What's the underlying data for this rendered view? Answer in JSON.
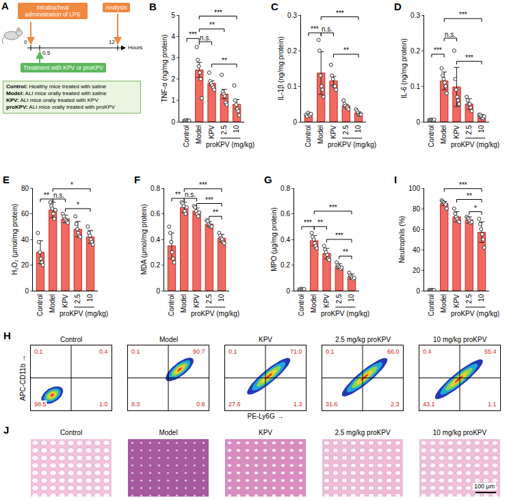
{
  "diagram": {
    "panel": "A",
    "boxes": {
      "lps": "Intratracheal administration of LPS",
      "analysis": "Analysis",
      "treatment": "Treatment with KPV or proKPV"
    },
    "axis": {
      "label": "Hours",
      "ticks": [
        "0",
        "0.5",
        "12"
      ]
    },
    "legend": [
      {
        "term": "Control:",
        "text": "Healthy mice treated with saline"
      },
      {
        "term": "Model:",
        "text": "ALI mice orally treated with saline"
      },
      {
        "term": "KPV:",
        "text": "ALI mice orally treated with KPV"
      },
      {
        "term": "proKPV:",
        "text": "ALI mice orally treated with proKPV"
      }
    ]
  },
  "chart_data": [
    {
      "type": "bar",
      "panel": "B",
      "ylabel": "TNF-α (ng/mg protein)",
      "categories": [
        "Control",
        "Model",
        "KPV",
        "2.5",
        "10"
      ],
      "values": [
        0.05,
        2.43,
        1.8,
        1.3,
        0.82
      ],
      "error": [
        0.02,
        0.35,
        0.12,
        0.22,
        0.22
      ],
      "points": [
        [
          0.05,
          0.03,
          0.08,
          0.04,
          0.06,
          0.05
        ],
        [
          3.5,
          2.9,
          2.6,
          2.3,
          2.0,
          1.1
        ],
        [
          2.3,
          1.9,
          1.8,
          1.7,
          1.6,
          1.5
        ],
        [
          2.2,
          1.4,
          1.3,
          1.2,
          0.9,
          0.8
        ],
        [
          1.7,
          1.0,
          0.8,
          0.6,
          0.5,
          0.3
        ]
      ],
      "ylim": [
        0,
        5
      ],
      "yticks": [
        0,
        1,
        2,
        3,
        4,
        5
      ],
      "color": "#ef6a60",
      "brackets": [
        {
          "from": "Control",
          "to": "Model",
          "label": "***",
          "y": 3.9
        },
        {
          "from": "Model",
          "to": "KPV",
          "label": "n.s.",
          "y": 3.75
        },
        {
          "from": "Model",
          "to": "2.5",
          "label": "**",
          "y": 4.35
        },
        {
          "from": "Model",
          "to": "10",
          "label": "***",
          "y": 4.95
        },
        {
          "from": "KPV",
          "to": "10",
          "label": "**",
          "y": 2.7
        }
      ],
      "group": {
        "label": "proKPV (mg/kg)",
        "from": "2.5",
        "to": "10"
      }
    },
    {
      "type": "bar",
      "panel": "C",
      "ylabel": "IL-1β (ng/mg protein)",
      "categories": [
        "Control",
        "Model",
        "KPV",
        "2.5",
        "10"
      ],
      "values": [
        0.02,
        0.137,
        0.115,
        0.045,
        0.025
      ],
      "error": [
        0.003,
        0.06,
        0.012,
        0.004,
        0.003
      ],
      "points": [
        [
          0.02,
          0.015,
          0.025,
          0.02,
          0.018,
          0.022
        ],
        [
          0.23,
          0.2,
          0.13,
          0.1,
          0.09,
          0.07
        ],
        [
          0.16,
          0.13,
          0.12,
          0.1,
          0.1,
          0.09
        ],
        [
          0.06,
          0.05,
          0.045,
          0.04,
          0.04,
          0.035
        ],
        [
          0.035,
          0.03,
          0.025,
          0.02,
          0.02,
          0.02
        ]
      ],
      "ylim": [
        0,
        0.3
      ],
      "yticks": [
        0,
        0.1,
        0.2,
        0.3
      ],
      "color": "#ef6a60",
      "brackets": [
        {
          "from": "Control",
          "to": "Model",
          "label": "***",
          "y": 0.25
        },
        {
          "from": "Model",
          "to": "KPV",
          "label": "n.s.",
          "y": 0.25
        },
        {
          "from": "Model",
          "to": "10",
          "label": "***",
          "y": 0.295
        },
        {
          "from": "KPV",
          "to": "10",
          "label": "**",
          "y": 0.19
        }
      ],
      "group": {
        "label": "proKPV (mg/kg)",
        "from": "2.5",
        "to": "10"
      }
    },
    {
      "type": "bar",
      "panel": "D",
      "ylabel": "IL-6 (ng/mg protein)",
      "categories": [
        "Control",
        "Model",
        "KPV",
        "2.5",
        "10"
      ],
      "values": [
        0.005,
        0.115,
        0.098,
        0.05,
        0.015
      ],
      "error": [
        0.002,
        0.025,
        0.055,
        0.015,
        0.005
      ],
      "points": [
        [
          0.005,
          0.004,
          0.006,
          0.005,
          0.004,
          0.006
        ],
        [
          0.15,
          0.13,
          0.12,
          0.11,
          0.1,
          0.08
        ],
        [
          0.2,
          0.12,
          0.09,
          0.07,
          0.06,
          0.05
        ],
        [
          0.07,
          0.06,
          0.05,
          0.05,
          0.04,
          0.03
        ],
        [
          0.02,
          0.02,
          0.015,
          0.01,
          0.01,
          0.015
        ]
      ],
      "ylim": [
        0,
        0.3
      ],
      "yticks": [
        0,
        0.1,
        0.2,
        0.3
      ],
      "color": "#ef6a60",
      "brackets": [
        {
          "from": "Control",
          "to": "Model",
          "label": "***",
          "y": 0.19
        },
        {
          "from": "Model",
          "to": "KPV",
          "label": "n.s.",
          "y": 0.235
        },
        {
          "from": "Model",
          "to": "10",
          "label": "***",
          "y": 0.29
        },
        {
          "from": "KPV",
          "to": "10",
          "label": "***",
          "y": 0.17
        }
      ],
      "group": {
        "label": "proKPV (mg/kg)",
        "from": "2.5",
        "to": "10"
      }
    },
    {
      "type": "bar",
      "panel": "E",
      "ylabel": "H₂O₂ (μmol/mg protein)",
      "categories": [
        "Control",
        "Model",
        "KPV",
        "2.5",
        "10"
      ],
      "values": [
        30,
        63,
        56,
        48,
        42
      ],
      "error": [
        9,
        6,
        3,
        6,
        5
      ],
      "points": [
        [
          45,
          38,
          30,
          25,
          22,
          20
        ],
        [
          69,
          66,
          64,
          60,
          56,
          63
        ],
        [
          60,
          58,
          56,
          55,
          54,
          53
        ],
        [
          58,
          52,
          48,
          45,
          43,
          42
        ],
        [
          50,
          45,
          43,
          40,
          38,
          36
        ]
      ],
      "ylim": [
        0,
        80
      ],
      "yticks": [
        0,
        20,
        40,
        60,
        80
      ],
      "color": "#ef6a60",
      "brackets": [
        {
          "from": "Control",
          "to": "Model",
          "label": "**",
          "y": 71.5
        },
        {
          "from": "Model",
          "to": "KPV",
          "label": "n.s.",
          "y": 71.5
        },
        {
          "from": "Model",
          "to": "10",
          "label": "*",
          "y": 79.5
        },
        {
          "from": "KPV",
          "to": "10",
          "label": "*",
          "y": 64
        }
      ],
      "group": {
        "label": "proKPV (mg/kg)",
        "from": "2.5",
        "to": "10"
      }
    },
    {
      "type": "bar",
      "panel": "F",
      "ylabel": "MDA (μmol/mg protein)",
      "categories": [
        "Control",
        "Model",
        "KPV",
        "2.5",
        "10"
      ],
      "values": [
        0.35,
        0.65,
        0.62,
        0.52,
        0.41
      ],
      "error": [
        0.1,
        0.04,
        0.025,
        0.02,
        0.03
      ],
      "points": [
        [
          0.5,
          0.45,
          0.38,
          0.3,
          0.25,
          0.22
        ],
        [
          0.69,
          0.68,
          0.66,
          0.62,
          0.6,
          0.65
        ],
        [
          0.66,
          0.65,
          0.62,
          0.6,
          0.58,
          0.61
        ],
        [
          0.55,
          0.54,
          0.52,
          0.51,
          0.5,
          0.5
        ],
        [
          0.45,
          0.43,
          0.41,
          0.4,
          0.38,
          0.37
        ]
      ],
      "ylim": [
        0,
        0.8
      ],
      "yticks": [
        0,
        0.2,
        0.4,
        0.6,
        0.8
      ],
      "color": "#ef6a60",
      "brackets": [
        {
          "from": "Control",
          "to": "Model",
          "label": "**",
          "y": 0.72
        },
        {
          "from": "Model",
          "to": "KPV",
          "label": "n.s.",
          "y": 0.72
        },
        {
          "from": "Model",
          "to": "10",
          "label": "***",
          "y": 0.795
        },
        {
          "from": "KPV",
          "to": "10",
          "label": "***",
          "y": 0.68
        },
        {
          "from": "2.5",
          "to": "10",
          "label": "**",
          "y": 0.58
        }
      ],
      "group": {
        "label": "proKPV (mg/kg)",
        "from": "2.5",
        "to": "10"
      }
    },
    {
      "type": "bar",
      "panel": "G",
      "ylabel": "MPO (μg/mg protein)",
      "categories": [
        "Control",
        "Model",
        "KPV",
        "2.5",
        "10"
      ],
      "values": [
        0.01,
        0.39,
        0.29,
        0.19,
        0.11
      ],
      "error": [
        0.005,
        0.04,
        0.04,
        0.02,
        0.02
      ],
      "points": [
        [
          0.01,
          0.005,
          0.015,
          0.01,
          0.008,
          0.012
        ],
        [
          0.45,
          0.42,
          0.4,
          0.37,
          0.35,
          0.33
        ],
        [
          0.35,
          0.32,
          0.3,
          0.28,
          0.25,
          0.24
        ],
        [
          0.22,
          0.2,
          0.19,
          0.18,
          0.17,
          0.18
        ],
        [
          0.14,
          0.12,
          0.11,
          0.1,
          0.09,
          0.1
        ]
      ],
      "ylim": [
        0,
        0.8
      ],
      "yticks": [
        0,
        0.2,
        0.4,
        0.6,
        0.8
      ],
      "color": "#ef6a60",
      "brackets": [
        {
          "from": "Control",
          "to": "Model",
          "label": "***",
          "y": 0.5
        },
        {
          "from": "Model",
          "to": "KPV",
          "label": "**",
          "y": 0.5
        },
        {
          "from": "Model",
          "to": "10",
          "label": "***",
          "y": 0.62
        },
        {
          "from": "KPV",
          "to": "10",
          "label": "***",
          "y": 0.4
        },
        {
          "from": "2.5",
          "to": "10",
          "label": "**",
          "y": 0.27
        }
      ],
      "group": {
        "label": "proKPV (mg/kg)",
        "from": "2.5",
        "to": "10"
      }
    },
    {
      "type": "bar",
      "panel": "I",
      "ylabel": "Neutrophils (%)",
      "categories": [
        "Control",
        "Model",
        "KPV",
        "2.5",
        "10"
      ],
      "values": [
        0.5,
        85,
        72,
        69,
        57
      ],
      "error": [
        0.3,
        2,
        5,
        3,
        10
      ],
      "points": [
        [
          0.5,
          0.3,
          0.7,
          0.4,
          0.6,
          0.5
        ],
        [
          88,
          87,
          86,
          85,
          84,
          80
        ],
        [
          80,
          75,
          72,
          70,
          68,
          67
        ],
        [
          72,
          71,
          70,
          68,
          66,
          67
        ],
        [
          70,
          65,
          60,
          55,
          50,
          42
        ]
      ],
      "ylim": [
        0,
        100
      ],
      "yticks": [
        0,
        20,
        40,
        60,
        80,
        100
      ],
      "color": "#ef6a60",
      "brackets": [
        {
          "from": "Model",
          "to": "10",
          "label": "***",
          "y": 99.5
        },
        {
          "from": "KPV",
          "to": "10",
          "label": "**",
          "y": 89
        },
        {
          "from": "2.5",
          "to": "10",
          "label": "*",
          "y": 77
        }
      ],
      "group": {
        "label": "proKPV (mg/kg)",
        "from": "2.5",
        "to": "10"
      }
    },
    {
      "type": "scatter",
      "panel": "H",
      "title": "Control",
      "ylabel": "APC-CD11b →",
      "xlim": [
        0,
        100
      ],
      "ylim": [
        0,
        100
      ],
      "tick_labels": false,
      "gate": {
        "x": 50,
        "y": 50
      },
      "population": {
        "from": [
          15,
          12
        ],
        "to": [
          38,
          35
        ],
        "width": 20
      },
      "quadrants": {
        "upper_left": "0.1",
        "upper_right": "0.4",
        "lower_left": "98.5",
        "lower_right": "1.0"
      }
    },
    {
      "type": "scatter",
      "title": "Model",
      "xlim": [
        0,
        100
      ],
      "ylim": [
        0,
        100
      ],
      "tick_labels": false,
      "gate": {
        "x": 50,
        "y": 50
      },
      "population": {
        "from": [
          48,
          46
        ],
        "to": [
          80,
          80
        ],
        "width": 18
      },
      "quadrants": {
        "upper_left": "0.1",
        "upper_right": "90.7",
        "lower_left": "8.3",
        "lower_right": "0.9"
      }
    },
    {
      "type": "scatter",
      "title": "KPV",
      "xlabel": "PE-Ly6G →",
      "xlim": [
        0,
        100
      ],
      "ylim": [
        0,
        100
      ],
      "tick_labels": false,
      "gate": {
        "x": 50,
        "y": 50
      },
      "population": {
        "from": [
          28,
          25
        ],
        "to": [
          80,
          80
        ],
        "width": 18
      },
      "quadrants": {
        "upper_left": "0.1",
        "upper_right": "71.0",
        "lower_left": "27.6",
        "lower_right": "1.3"
      }
    },
    {
      "type": "scatter",
      "title": "2.5 mg/kg proKPV",
      "xlim": [
        0,
        100
      ],
      "ylim": [
        0,
        100
      ],
      "tick_labels": false,
      "gate": {
        "x": 50,
        "y": 50
      },
      "population": {
        "from": [
          25,
          22
        ],
        "to": [
          80,
          80
        ],
        "width": 18
      },
      "quadrants": {
        "upper_left": "0.1",
        "upper_right": "66.0",
        "lower_left": "31.6",
        "lower_right": "2.3"
      }
    },
    {
      "type": "scatter",
      "title": "10 mg/kg proKPV",
      "xlim": [
        0,
        100
      ],
      "ylim": [
        0,
        100
      ],
      "tick_labels": false,
      "gate": {
        "x": 50,
        "y": 50
      },
      "population": {
        "from": [
          20,
          18
        ],
        "to": [
          78,
          78
        ],
        "width": 18
      },
      "quadrants": {
        "upper_left": "0.4",
        "upper_right": "55.4",
        "lower_left": "43.1",
        "lower_right": "1.1"
      }
    }
  ],
  "images": {
    "panel": "J",
    "titles": [
      "Control",
      "Model",
      "KPV",
      "2.5 mg/kg proKPV",
      "10 mg/kg proKPV"
    ],
    "colors": [
      "#f2c4dc",
      "#a45a9c",
      "#d88cbf",
      "#efbcd8",
      "#f0bfd9"
    ],
    "scale_bar": "100 μm"
  }
}
